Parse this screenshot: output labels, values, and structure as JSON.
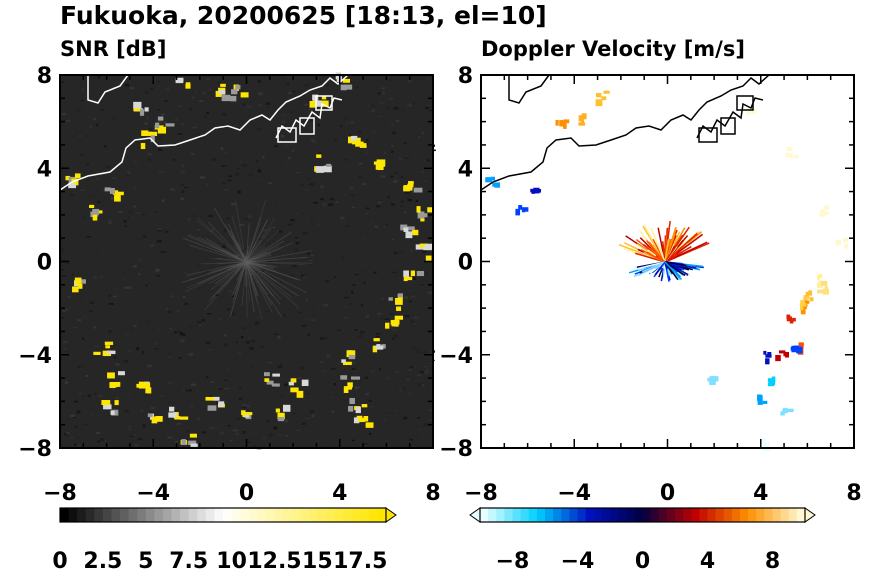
{
  "title": "Fukuoka, 20200625 [18:13, el=10]",
  "colors": {
    "snr_background": "#262626",
    "snr_echo": "#ffe600",
    "coastline": "#000000"
  },
  "chart_data": [
    {
      "type": "heatmap",
      "title": "SNR [dB]",
      "xlim": [
        -8,
        8
      ],
      "ylim": [
        -8,
        8
      ],
      "xticks": [
        "−8",
        "−4",
        "0",
        "4",
        "8"
      ],
      "yticks": [
        "8",
        "4",
        "0",
        "−4",
        "−8"
      ],
      "colorbar": {
        "range": [
          0,
          19
        ],
        "labels": [
          "0",
          "2.5",
          "5",
          "7.5",
          "10",
          "12.5",
          "15",
          "17.5"
        ],
        "colors": [
          "#000000",
          "#ffffff",
          "#ffe600"
        ],
        "extend": "max"
      }
    },
    {
      "type": "heatmap",
      "title": "Doppler Velocity [m/s]",
      "xlim": [
        -8,
        8
      ],
      "ylim": [
        -8,
        8
      ],
      "xticks": [
        "−8",
        "−4",
        "0",
        "4",
        "8"
      ],
      "yticks": [
        "8",
        "4",
        "0",
        "−4",
        "−8"
      ],
      "colorbar": {
        "range": [
          -10,
          10
        ],
        "labels": [
          "−8",
          "−4",
          "0",
          "4",
          "8"
        ],
        "colors": [
          "#e8ffff",
          "#00d0ff",
          "#0010c0",
          "#000040",
          "#c00000",
          "#ff9000",
          "#fff8d0"
        ],
        "extend": "both"
      }
    }
  ]
}
